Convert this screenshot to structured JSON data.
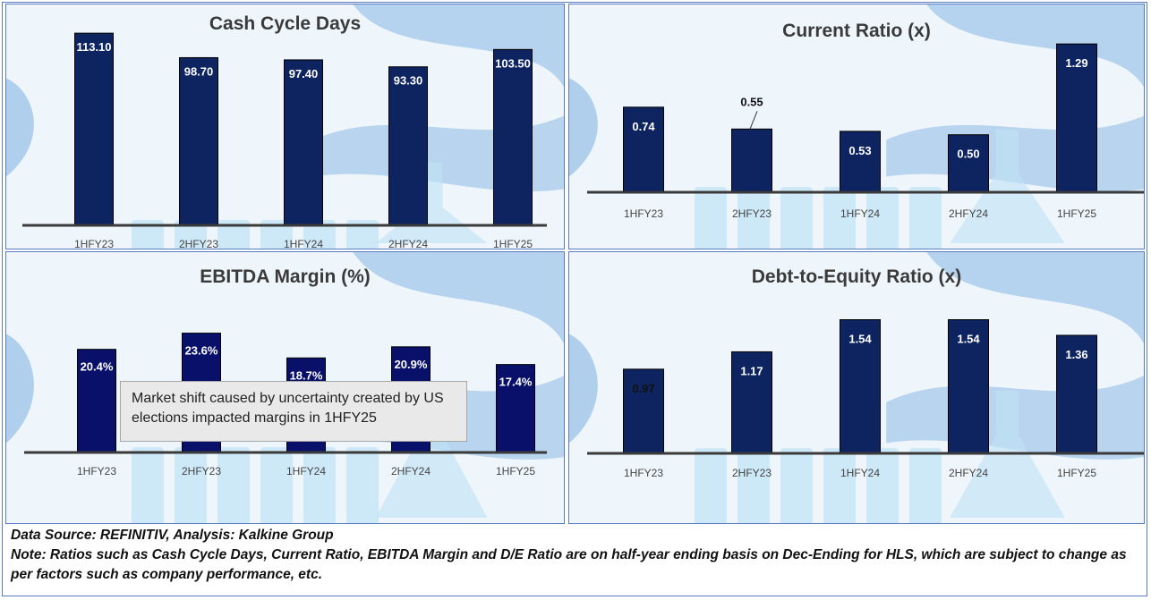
{
  "colors": {
    "bar": "#0d2460",
    "bar_ebitda": "#08106a",
    "axis": "#3a3a3a",
    "label_light": "#ffffff",
    "label_dark": "#111111"
  },
  "chart_data": [
    {
      "type": "bar",
      "title": "Cash Cycle Days",
      "categories": [
        "1HFY23",
        "2HFY23",
        "1HFY24",
        "2HFY24",
        "1HFY25"
      ],
      "values": [
        113.1,
        98.7,
        97.4,
        93.3,
        103.5
      ],
      "value_labels": [
        "113.10",
        "98.70",
        "97.40",
        "93.30",
        "103.50"
      ],
      "ylim": [
        0,
        120
      ]
    },
    {
      "type": "bar",
      "title": "Current Ratio (x)",
      "categories": [
        "1HFY23",
        "2HFY23",
        "1HFY24",
        "2HFY24",
        "1HFY25"
      ],
      "values": [
        0.74,
        0.55,
        0.53,
        0.5,
        1.29
      ],
      "value_labels": [
        "0.74",
        "0.55",
        "0.53",
        "0.50",
        "1.29"
      ],
      "ylim": [
        0,
        1.4
      ]
    },
    {
      "type": "bar",
      "title": "EBITDA Margin (%)",
      "categories": [
        "1HFY23",
        "2HFY23",
        "1HFY24",
        "2HFY24",
        "1HFY25"
      ],
      "values": [
        20.4,
        23.6,
        18.7,
        20.9,
        17.4
      ],
      "value_labels": [
        "20.4%",
        "23.6%",
        "18.7%",
        "20.9%",
        "17.4%"
      ],
      "ylim": [
        0,
        26
      ],
      "annotation": "Market shift caused by uncertainty created by US elections impacted margins in 1HFY25"
    },
    {
      "type": "bar",
      "title": "Debt-to-Equity Ratio (x)",
      "categories": [
        "1HFY23",
        "2HFY23",
        "1HFY24",
        "2HFY24",
        "1HFY25"
      ],
      "values": [
        0.97,
        1.17,
        1.54,
        1.54,
        1.36
      ],
      "value_labels": [
        "0.97",
        "1.17",
        "1.54",
        "1.54",
        "1.36"
      ],
      "ylim": [
        0,
        1.7
      ]
    }
  ],
  "footer": {
    "source": "Data Source: REFINITIV, Analysis: Kalkine Group",
    "note": "Note: Ratios such as Cash Cycle Days, Current Ratio, EBITDA Margin and D/E Ratio are on half-year ending basis on Dec-Ending for HLS, which are subject to change as per factors such as company performance, etc."
  }
}
